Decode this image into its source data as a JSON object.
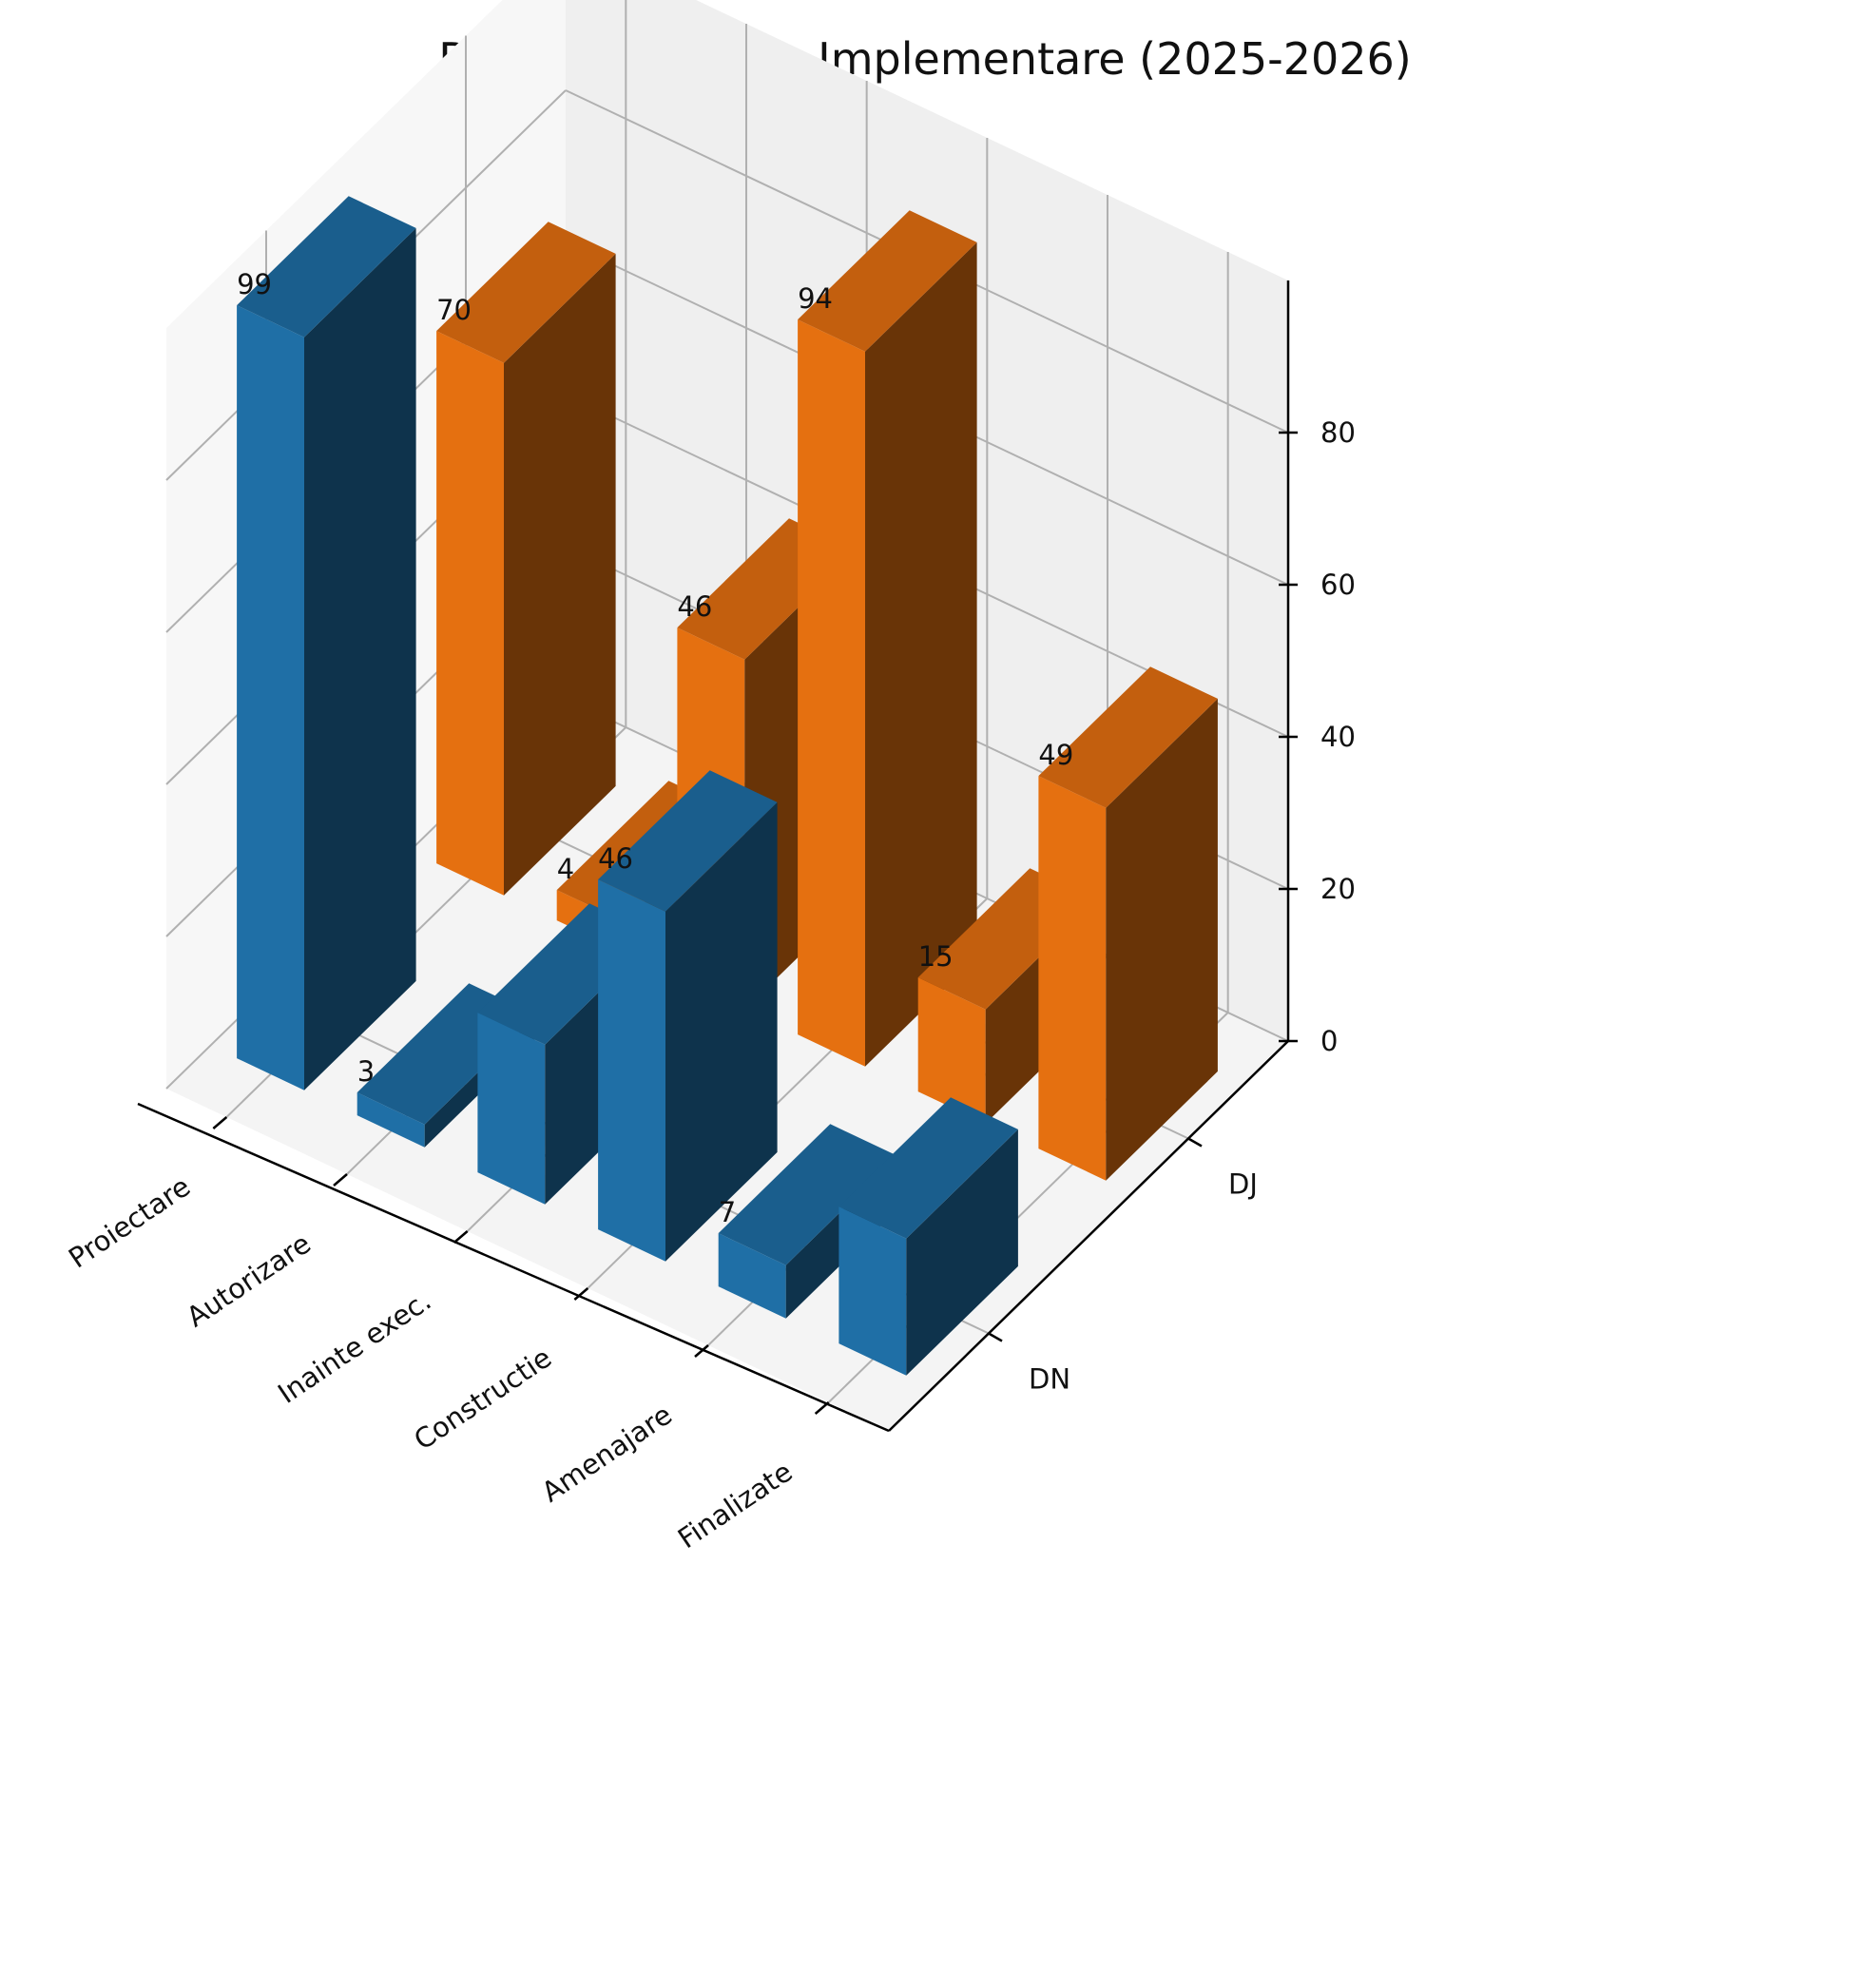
{
  "chart_data": {
    "type": "bar3d",
    "title": "DN vs DJ – Etape Implementare (2025-2026)",
    "categories": [
      "Proiectare",
      "Autorizare",
      "Inainte exec.",
      "Constructie",
      "Amenajare",
      "Finalizate"
    ],
    "series": [
      {
        "name": "DN",
        "color": "#1f6fa6",
        "values": [
          99,
          3,
          21,
          46,
          7,
          18
        ]
      },
      {
        "name": "DJ",
        "color": "#e57010",
        "values": [
          70,
          4,
          46,
          94,
          15,
          49
        ]
      }
    ],
    "value_labels": {
      "DN": [
        "99",
        "3",
        "",
        "46",
        "7",
        ""
      ],
      "DJ": [
        "70",
        "4",
        "46",
        "94",
        "15",
        "49"
      ]
    },
    "zlim": [
      0,
      100
    ],
    "z_ticks": [
      0,
      20,
      40,
      60,
      80
    ],
    "z_tick_labels": [
      "0",
      "20",
      "40",
      "60",
      "80"
    ],
    "grid": true
  }
}
